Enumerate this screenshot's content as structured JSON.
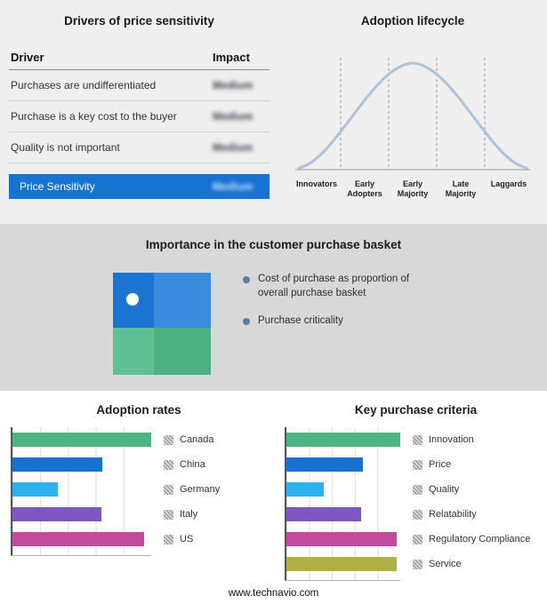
{
  "basket": {
    "title": "Importance in the customer purchase basket",
    "legend": [
      "Cost of purchase as proportion of overall purchase basket",
      "Purchase criticality"
    ],
    "quadrant_colors": {
      "top_left": "#1b74d1",
      "top_right": "#3a8dde",
      "bottom_left": "#5fc095",
      "bottom_right": "#49b27f"
    }
  },
  "footer": {
    "url": "www.technavio.com"
  },
  "chart_data": [
    {
      "type": "table",
      "title": "Drivers of price sensitivity",
      "columns": [
        "Driver",
        "Impact"
      ],
      "rows": [
        [
          "Purchases are undifferentiated",
          "Medium"
        ],
        [
          "Purchase is a key cost to the buyer",
          "Medium"
        ],
        [
          "Quality is not important",
          "Medium"
        ],
        [
          "Price Sensitivity",
          "Medium"
        ]
      ],
      "highlight_row_index": 3,
      "highlight_color": "#1673d2",
      "note": "Impact values are blurred in the source image"
    },
    {
      "type": "line",
      "title": "Adoption lifecycle",
      "categories": [
        "Innovators",
        "Early Adopters",
        "Early Majority",
        "Late Majority",
        "Laggards"
      ],
      "curve": "bell",
      "curve_color": "#aec3da",
      "grid": "dashed vertical stage dividers"
    },
    {
      "type": "bar",
      "orientation": "horizontal",
      "title": "Adoption rates",
      "categories": [
        "Canada",
        "China",
        "Germany",
        "Italy",
        "US"
      ],
      "values": [
        100,
        65,
        33,
        64,
        95
      ],
      "colors": [
        "#4db584",
        "#1673d2",
        "#2cb3ef",
        "#7e57c2",
        "#c44a9e"
      ],
      "xlim": [
        0,
        100
      ],
      "grid": true,
      "legend_position": "right"
    },
    {
      "type": "bar",
      "orientation": "horizontal",
      "title": "Key purchase criteria",
      "categories": [
        "Innovation",
        "Price",
        "Quality",
        "Relatability",
        "Regulatory Compliance",
        "Service"
      ],
      "values": [
        100,
        67,
        33,
        66,
        97,
        97
      ],
      "colors": [
        "#4db584",
        "#1673d2",
        "#2cb3ef",
        "#7e57c2",
        "#c44a9e",
        "#b2af45"
      ],
      "xlim": [
        0,
        100
      ],
      "grid": true,
      "legend_position": "right"
    }
  ]
}
